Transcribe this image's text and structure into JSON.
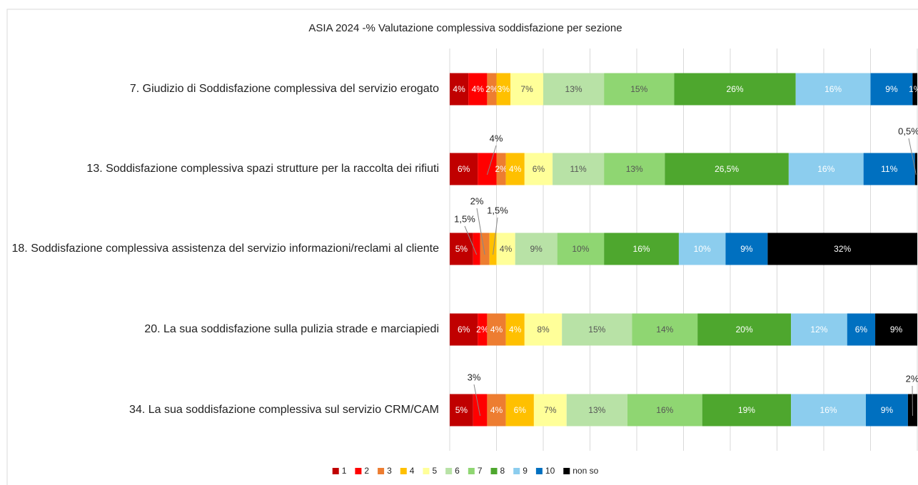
{
  "chart_data": {
    "type": "stacked_barh",
    "title": "ASIA 2024 -%  Valutazione complessiva soddisfazione per sezione",
    "categories": [
      "7. Giudizio di Soddisfazione complessiva del servizio erogato",
      "13. Soddisfazione complessiva spazi strutture per la raccolta dei rifiuti",
      "18. Soddisfazione complessiva assistenza del servizio informazioni/reclami al cliente",
      "20. La sua soddisfazione sulla pulizia strade e marciapiedi",
      "34. La sua soddisfazione complessiva sul servizio CRM/CAM"
    ],
    "series": [
      {
        "name": "1",
        "color": "#c00000",
        "values": [
          4,
          6,
          5,
          6,
          5
        ],
        "value_labels": [
          "4%",
          "6%",
          "5%",
          "6%",
          "5%"
        ]
      },
      {
        "name": "2",
        "color": "#ff0000",
        "values": [
          4,
          4,
          1.5,
          2,
          3
        ],
        "value_labels": [
          "4%",
          "4%",
          "1,5%",
          "2%",
          "3%"
        ]
      },
      {
        "name": "3",
        "color": "#ed7d31",
        "values": [
          2,
          2,
          2,
          4,
          4
        ],
        "value_labels": [
          "2%",
          "2%",
          "2%",
          "4%",
          "4%"
        ]
      },
      {
        "name": "4",
        "color": "#ffc000",
        "values": [
          3,
          4,
          1.5,
          4,
          6
        ],
        "value_labels": [
          "3%",
          "4%",
          "1,5%",
          "4%",
          "6%"
        ]
      },
      {
        "name": "5",
        "color": "#ffff99",
        "values": [
          7,
          6,
          4,
          8,
          7
        ],
        "value_labels": [
          "7%",
          "6%",
          "4%",
          "8%",
          "7%"
        ]
      },
      {
        "name": "6",
        "color": "#b8e2a6",
        "values": [
          13,
          11,
          9,
          15,
          13
        ],
        "value_labels": [
          "13%",
          "11%",
          "9%",
          "15%",
          "13%"
        ]
      },
      {
        "name": "7",
        "color": "#8fd672",
        "values": [
          15,
          13,
          10,
          14,
          16
        ],
        "value_labels": [
          "15%",
          "13%",
          "10%",
          "14%",
          "16%"
        ]
      },
      {
        "name": "8",
        "color": "#4ea72e",
        "values": [
          26,
          26.5,
          16,
          20,
          19
        ],
        "value_labels": [
          "26%",
          "26,5%",
          "16%",
          "20%",
          "19%"
        ]
      },
      {
        "name": "9",
        "color": "#8ccdee",
        "values": [
          16,
          16,
          10,
          12,
          16
        ],
        "value_labels": [
          "16%",
          "16%",
          "10%",
          "12%",
          "16%"
        ]
      },
      {
        "name": "10",
        "color": "#0070c0",
        "values": [
          9,
          11,
          9,
          6,
          9
        ],
        "value_labels": [
          "9%",
          "11%",
          "9%",
          "6%",
          "9%"
        ]
      },
      {
        "name": "non so",
        "color": "#000000",
        "values": [
          1,
          0.5,
          32,
          9,
          2
        ],
        "value_labels": [
          "1%",
          "0,5%",
          "32%",
          "9%",
          "2%"
        ]
      }
    ],
    "xlim": [
      0,
      100
    ],
    "xticks": [
      0,
      10,
      20,
      30,
      40,
      50,
      60,
      70,
      80,
      90,
      100
    ],
    "grid": true,
    "legend": "bottom"
  }
}
